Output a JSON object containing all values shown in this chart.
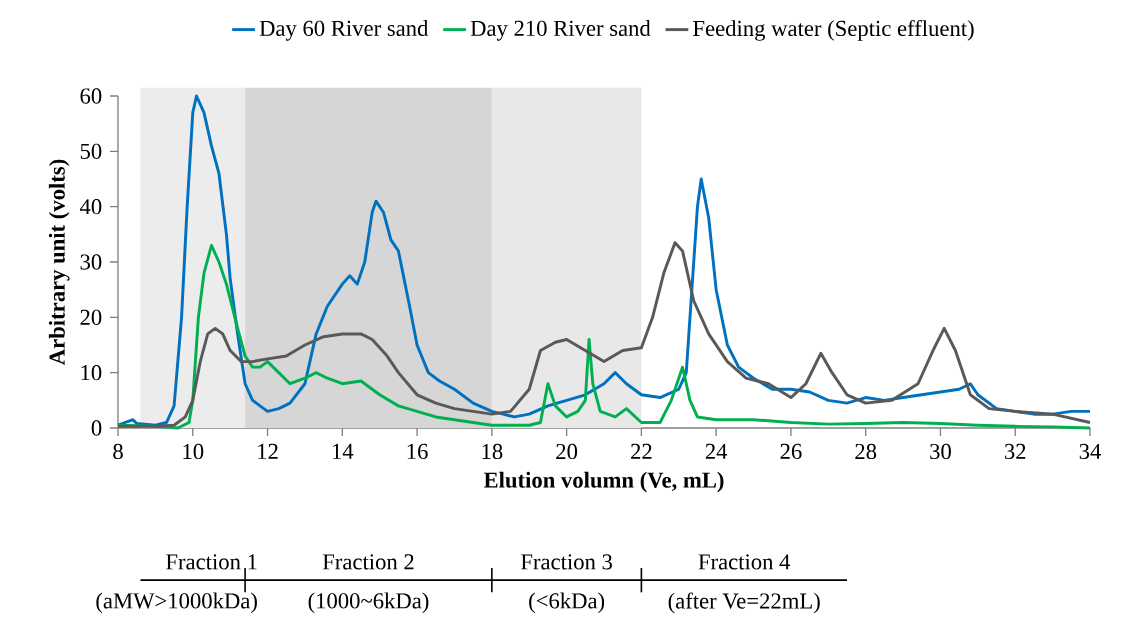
{
  "chart_data": {
    "type": "line",
    "xlabel": "Elution volumn (Ve, mL)",
    "ylabel": "Arbitrary unit  (volts)",
    "xlim": [
      8,
      34
    ],
    "xticks": [
      8,
      10,
      12,
      14,
      16,
      18,
      20,
      22,
      24,
      26,
      28,
      30,
      32,
      34
    ],
    "ylim": [
      0,
      60
    ],
    "yticks": [
      0,
      10,
      20,
      30,
      40,
      50,
      60
    ],
    "legend": "top",
    "grid": false,
    "bands": [
      {
        "axis": "x",
        "from": 8.6,
        "to": 11.4,
        "color": "#ececec"
      },
      {
        "axis": "x",
        "from": 11.4,
        "to": 18,
        "color": "#d6d6d6"
      },
      {
        "axis": "x",
        "from": 18,
        "to": 22,
        "color": "#e8e8e8"
      }
    ],
    "annotations": [
      "Fraction 1",
      "(aMW>1000kDa)",
      "Fraction 2",
      "(1000~6kDa)",
      "Fraction 3",
      "(<6kDa)",
      "Fraction 4",
      "(after Ve=22mL)"
    ],
    "series": [
      {
        "name": "Day 60 River sand",
        "color": "#0070c0",
        "x": [
          8,
          8.4,
          8.5,
          9,
          9.3,
          9.5,
          9.7,
          9.85,
          10,
          10.1,
          10.3,
          10.5,
          10.7,
          10.9,
          11,
          11.2,
          11.4,
          11.6,
          11.8,
          12,
          12.3,
          12.6,
          13,
          13.3,
          13.6,
          14,
          14.2,
          14.4,
          14.6,
          14.8,
          14.9,
          15.1,
          15.3,
          15.5,
          15.8,
          16,
          16.3,
          16.6,
          17,
          17.5,
          18,
          18.3,
          18.6,
          19,
          19.5,
          20,
          20.5,
          21,
          21.3,
          21.6,
          22,
          22.5,
          23,
          23.2,
          23.35,
          23.5,
          23.6,
          23.8,
          24,
          24.3,
          24.6,
          25,
          25.5,
          26,
          26.5,
          27,
          27.5,
          28,
          28.5,
          29,
          29.5,
          30,
          30.5,
          30.8,
          31,
          31.5,
          32,
          32.5,
          33,
          33.5,
          34
        ],
        "values": [
          0.5,
          1.5,
          0.8,
          0.5,
          1,
          4,
          20,
          40,
          57,
          60,
          57,
          51,
          46,
          35,
          27,
          17,
          8,
          5,
          4,
          3,
          3.5,
          4.5,
          8,
          17,
          22,
          26,
          27.5,
          26,
          30,
          39,
          41,
          39,
          34,
          32,
          22,
          15,
          10,
          8.5,
          7,
          4.5,
          3,
          2.5,
          2,
          2.5,
          4,
          5,
          6,
          8,
          10,
          8,
          6,
          5.5,
          7,
          10,
          25,
          40,
          45,
          38,
          25,
          15,
          11,
          9,
          7,
          7,
          6.5,
          5,
          4.5,
          5.5,
          5,
          5.5,
          6,
          6.5,
          7,
          8,
          6,
          3.5,
          3,
          2.5,
          2.5,
          3,
          3
        ]
      },
      {
        "name": "Day 210 River sand",
        "color": "#00b050",
        "x": [
          8,
          9,
          9.6,
          9.9,
          10,
          10.15,
          10.3,
          10.5,
          10.7,
          10.9,
          11.2,
          11.4,
          11.6,
          11.8,
          12,
          12.3,
          12.6,
          13,
          13.3,
          13.6,
          14,
          14.5,
          15,
          15.5,
          16,
          16.5,
          17,
          17.5,
          18,
          18.5,
          19,
          19.3,
          19.5,
          19.7,
          20,
          20.3,
          20.5,
          20.6,
          20.7,
          20.9,
          21.3,
          21.6,
          22,
          22.5,
          22.8,
          23,
          23.1,
          23.3,
          23.5,
          24,
          25,
          26,
          27,
          28,
          29,
          30,
          31,
          32,
          33,
          34
        ],
        "values": [
          0.5,
          0.3,
          0,
          1,
          5,
          20,
          28,
          33,
          30,
          26,
          18,
          13,
          11,
          11,
          12,
          10,
          8,
          9,
          10,
          9,
          8,
          8.5,
          6,
          4,
          3,
          2,
          1.5,
          1,
          0.5,
          0.5,
          0.5,
          1,
          8,
          4,
          2,
          3,
          5,
          16,
          8,
          3,
          2,
          3.5,
          1,
          1,
          5,
          9,
          11,
          5,
          2,
          1.5,
          1.5,
          1,
          0.7,
          0.8,
          1,
          0.8,
          0.5,
          0.3,
          0.2,
          0
        ]
      },
      {
        "name": "Feeding water (Septic effluent)",
        "color": "#595959",
        "x": [
          8,
          9,
          9.5,
          9.8,
          10,
          10.2,
          10.4,
          10.6,
          10.8,
          11,
          11.3,
          11.6,
          12,
          12.5,
          13,
          13.5,
          14,
          14.5,
          14.8,
          15.2,
          15.5,
          16,
          16.5,
          17,
          17.5,
          18,
          18.5,
          19,
          19.3,
          19.7,
          20,
          20.5,
          21,
          21.5,
          22,
          22.3,
          22.6,
          22.9,
          23.1,
          23.4,
          23.8,
          24.3,
          24.8,
          25.4,
          26,
          26.4,
          26.8,
          27.1,
          27.5,
          28,
          28.7,
          29.4,
          29.8,
          30.1,
          30.4,
          30.8,
          31.3,
          32,
          33,
          34
        ],
        "values": [
          0.3,
          0.3,
          0.5,
          2,
          5,
          12,
          17,
          18,
          17,
          14,
          12,
          12,
          12.5,
          13,
          15,
          16.5,
          17,
          17,
          16,
          13,
          10,
          6,
          4.5,
          3.5,
          3,
          2.5,
          3,
          7,
          14,
          15.5,
          16,
          14,
          12,
          14,
          14.5,
          20,
          28,
          33.5,
          32,
          23,
          17,
          12,
          9,
          8,
          5.5,
          8,
          13.5,
          10,
          6,
          4.5,
          5,
          8,
          14,
          18,
          14,
          6,
          3.5,
          3,
          2.5,
          1
        ]
      }
    ]
  }
}
